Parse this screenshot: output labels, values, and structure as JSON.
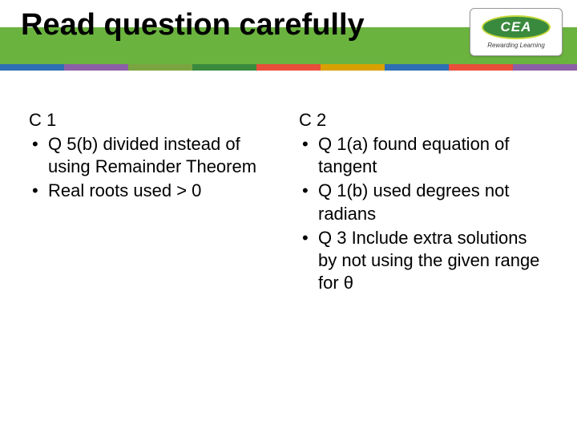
{
  "title": "Read question carefully",
  "header": {
    "band_color": "#6bb33f",
    "stripe_colors": [
      "#2e6fb4",
      "#8b5fa6",
      "#7aa440",
      "#3a8a3e",
      "#e94e3a",
      "#d8a000",
      "#2e6fb4",
      "#e94e3a",
      "#8b5fa6"
    ]
  },
  "logo": {
    "text": "CEA",
    "tagline": "Rewarding Learning",
    "oval_bg": "#3a8a3e",
    "oval_border": "#c7d93a",
    "text_color": "#ffffff",
    "tag_color": "#3a3a3a"
  },
  "columns": {
    "left": {
      "heading": "C 1",
      "items": [
        "Q 5(b) divided instead of using Remainder Theorem",
        "Real roots  used > 0"
      ]
    },
    "right": {
      "heading": "C 2",
      "items": [
        "Q 1(a) found equation of tangent",
        "Q 1(b) used degrees not radians",
        "Q 3  Include extra solutions by not using the given range for θ"
      ]
    }
  }
}
